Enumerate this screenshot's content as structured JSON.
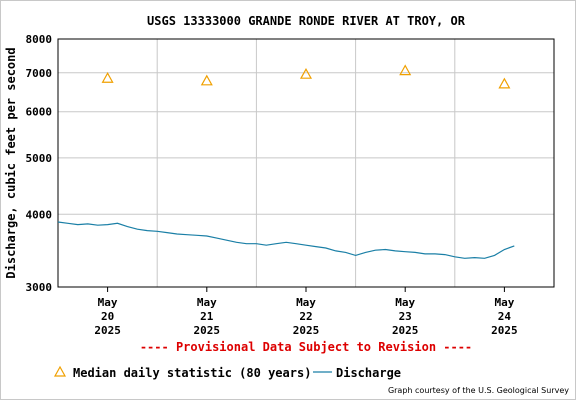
{
  "chart_data": {
    "type": "line",
    "title": "USGS 13333000 GRANDE RONDE RIVER AT TROY, OR",
    "ylabel": "Discharge, cubic feet per second",
    "xlabel": "",
    "y_scale": "log",
    "ylim": [
      3000,
      8000
    ],
    "y_ticks": [
      3000,
      4000,
      5000,
      6000,
      7000,
      8000
    ],
    "y_tick_labels": [
      "3000",
      "4000",
      "5000",
      "6000",
      "7000",
      "8000"
    ],
    "x_ticks": [
      {
        "line1": "May",
        "line2": "20",
        "line3": "2025"
      },
      {
        "line1": "May",
        "line2": "21",
        "line3": "2025"
      },
      {
        "line1": "May",
        "line2": "22",
        "line3": "2025"
      },
      {
        "line1": "May",
        "line2": "23",
        "line3": "2025"
      },
      {
        "line1": "May",
        "line2": "24",
        "line3": "2025"
      }
    ],
    "x_range_days": [
      0,
      5
    ],
    "grid": true,
    "series": [
      {
        "name": "Discharge",
        "kind": "line",
        "color": "#1a7fa6",
        "x_days": [
          0.0,
          0.1,
          0.2,
          0.3,
          0.4,
          0.5,
          0.6,
          0.7,
          0.8,
          0.9,
          1.0,
          1.1,
          1.2,
          1.3,
          1.4,
          1.5,
          1.6,
          1.7,
          1.8,
          1.9,
          2.0,
          2.1,
          2.2,
          2.3,
          2.4,
          2.5,
          2.6,
          2.7,
          2.8,
          2.9,
          3.0,
          3.1,
          3.2,
          3.3,
          3.4,
          3.5,
          3.6,
          3.7,
          3.8,
          3.9,
          4.0,
          4.1,
          4.2,
          4.3,
          4.4,
          4.5,
          4.6
        ],
        "values": [
          3880,
          3860,
          3840,
          3850,
          3830,
          3840,
          3860,
          3810,
          3770,
          3750,
          3740,
          3720,
          3700,
          3690,
          3680,
          3670,
          3640,
          3610,
          3580,
          3560,
          3560,
          3540,
          3560,
          3580,
          3560,
          3540,
          3520,
          3500,
          3460,
          3440,
          3400,
          3440,
          3470,
          3480,
          3460,
          3450,
          3440,
          3420,
          3420,
          3410,
          3380,
          3360,
          3370,
          3360,
          3400,
          3480,
          3530
        ]
      },
      {
        "name": "Median daily statistic (80 years)",
        "kind": "markers",
        "marker": "triangle",
        "color": "#f0a000",
        "x_days": [
          0.5,
          1.5,
          2.5,
          3.5,
          4.5
        ],
        "values": [
          6850,
          6780,
          6960,
          7060,
          6700
        ]
      }
    ],
    "legend_placement": "bottom",
    "annotation": "---- Provisional Data Subject to Revision ----",
    "annotation_color": "#dd0000",
    "credit": "Graph courtesy of the U.S. Geological Survey"
  }
}
